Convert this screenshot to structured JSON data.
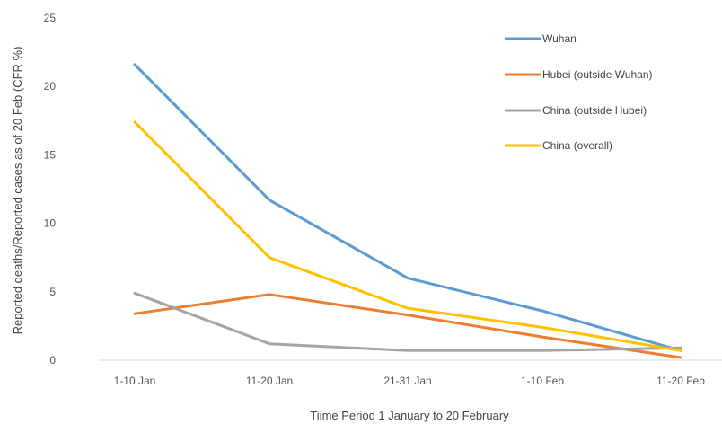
{
  "chart_data": {
    "type": "line",
    "title": "",
    "xlabel": "Tiime Period 1 January to 20 February",
    "ylabel": "Reported deaths/Reported cases as of 20 Feb (CFR %)",
    "categories": [
      "1-10 Jan",
      "11-20 Jan",
      "21-31 Jan",
      "1-10 Feb",
      "11-20 Feb"
    ],
    "ylim": [
      0,
      25
    ],
    "yticks": [
      0,
      5,
      10,
      15,
      20,
      25
    ],
    "grid": false,
    "legend_position": "top-right",
    "series": [
      {
        "name": "Wuhan",
        "color": "#5B9BD5",
        "values": [
          21.6,
          11.7,
          6.0,
          3.6,
          0.7
        ]
      },
      {
        "name": "Hubei (outside Wuhan)",
        "color": "#ED7D31",
        "values": [
          3.4,
          4.8,
          3.3,
          1.7,
          0.2
        ]
      },
      {
        "name": "China (outside Hubei)",
        "color": "#A5A5A5",
        "values": [
          4.9,
          1.2,
          0.7,
          0.7,
          0.9
        ]
      },
      {
        "name": "China (overall)",
        "color": "#FFC000",
        "values": [
          17.4,
          7.5,
          3.8,
          2.4,
          0.7
        ]
      }
    ]
  }
}
